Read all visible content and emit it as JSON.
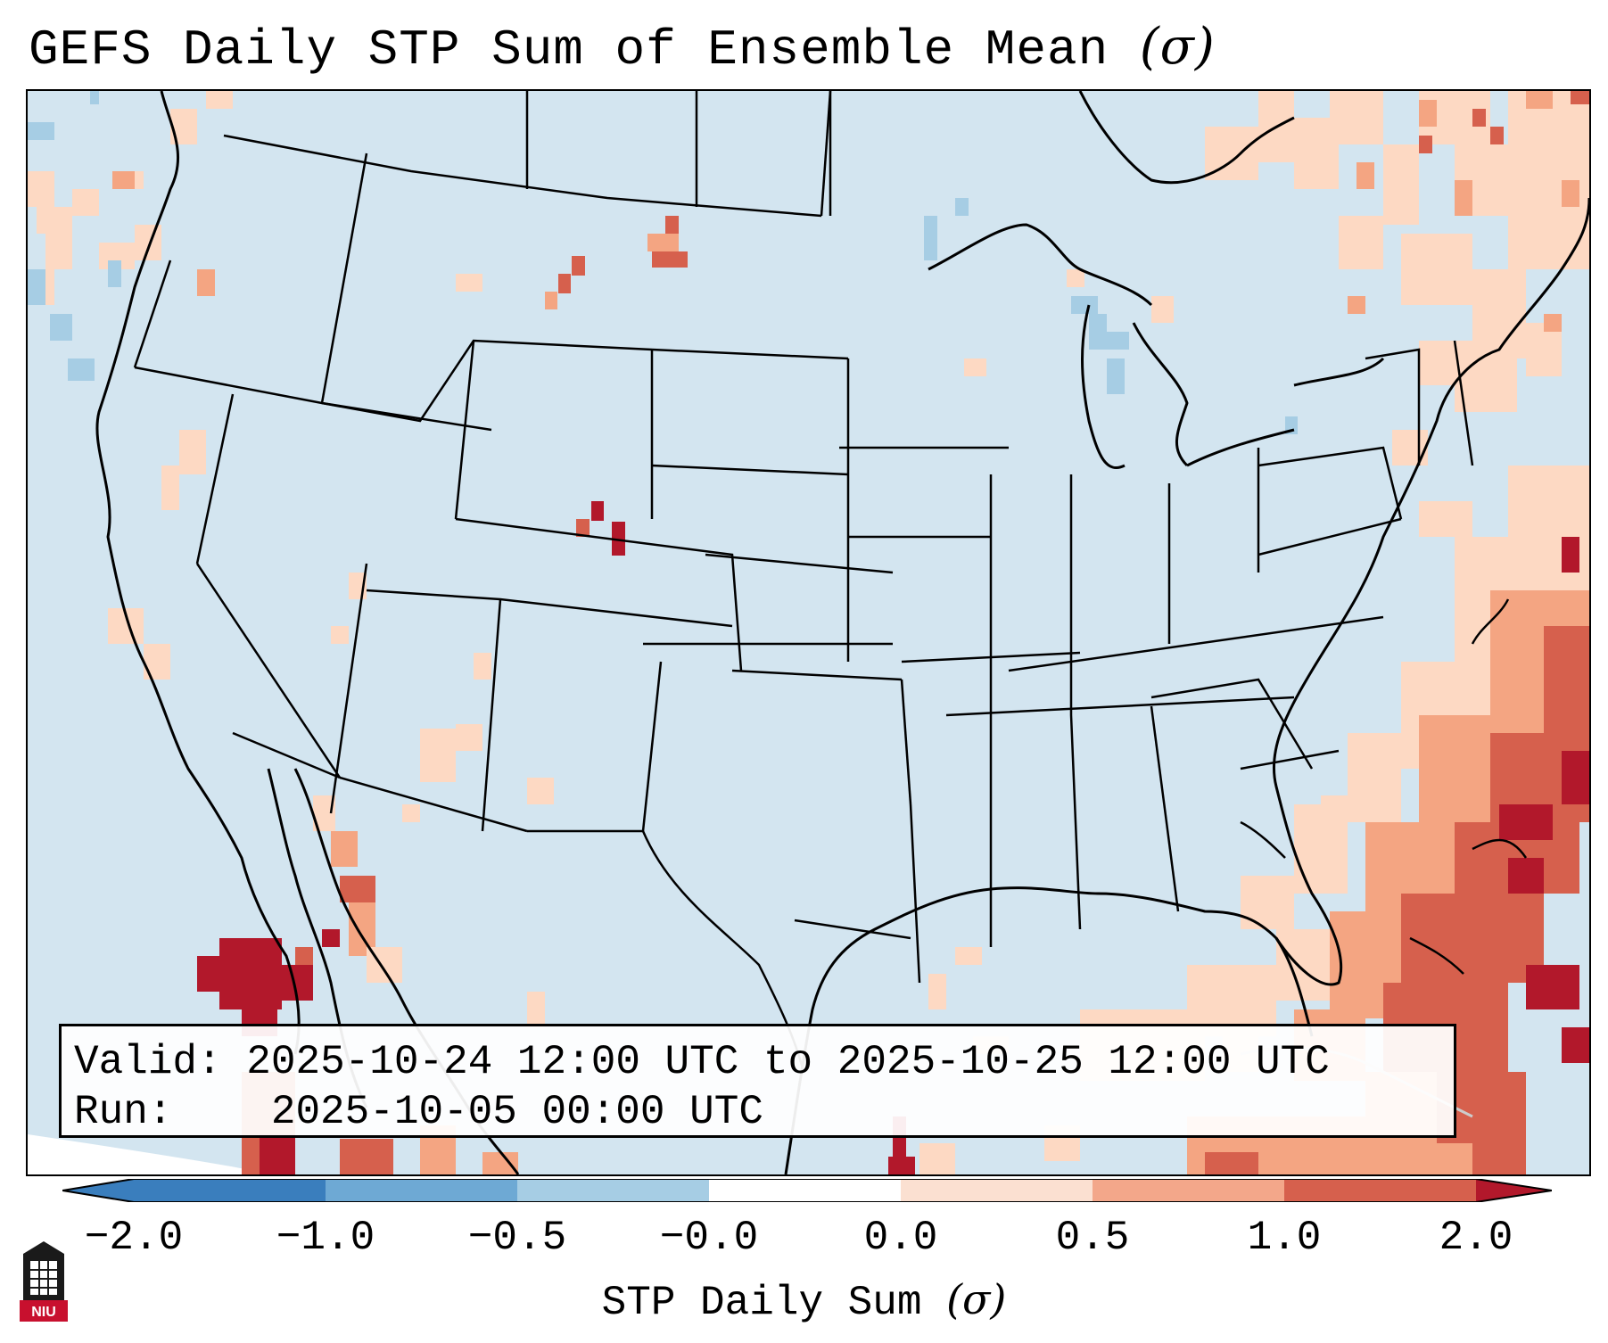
{
  "title": "GEFS Daily STP Sum of Ensemble Mean",
  "title_unit_symbol": "(σ)",
  "info": {
    "valid_label": "Valid:",
    "valid_value": "2025-10-24 12:00 UTC to 2025-10-25 12:00 UTC",
    "run_label": "Run:",
    "run_value": "2025-10-05 00:00 UTC"
  },
  "colorbar": {
    "label": "STP Daily Sum",
    "label_symbol": "(σ)",
    "ticks": [
      "−2.0",
      "−1.0",
      "−0.5",
      "−0.0",
      "0.0",
      "0.5",
      "1.0",
      "2.0"
    ],
    "bin_colors": [
      "#3a7ebd",
      "#6ea9d4",
      "#a6cde4",
      "#d4e6f1",
      "#fbe0d1",
      "#f3a78a",
      "#d6604d",
      "#b2182b"
    ],
    "extend": "both"
  },
  "map": {
    "background_color": "#d3e5f0",
    "border_color": "#000000",
    "anomaly_colors": {
      "weak_pos": "#fdd9c3",
      "mid_pos": "#f4a582",
      "strong_pos": "#d6604d",
      "max_pos": "#b2182b",
      "weak_neg": "#a6cde4",
      "mid_neg": "#6ea9d4"
    }
  },
  "logo_text": "NIU"
}
